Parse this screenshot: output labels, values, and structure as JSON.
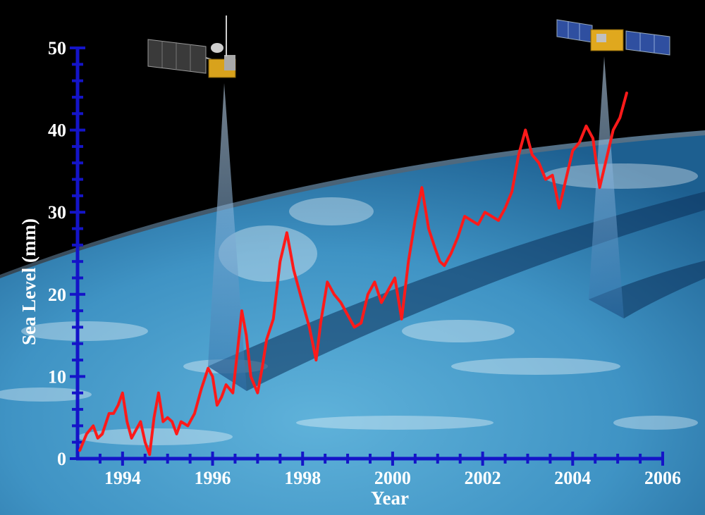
{
  "colors": {
    "space": "#000000",
    "ocean_light": "#4fa3cf",
    "ocean_dark": "#1f6f9e",
    "axis": "#1414c8",
    "series": "#ff1a1a",
    "ground_track": "#0b2f5a"
  },
  "icons": [
    "satellite-topex-icon",
    "satellite-jason-icon"
  ],
  "chart_data": {
    "type": "line",
    "title": "",
    "xlabel": "Year",
    "ylabel": "Sea Level (mm)",
    "xlim": [
      1993.0,
      2006.0
    ],
    "ylim": [
      0,
      50
    ],
    "x_ticks": [
      "1994",
      "1996",
      "1998",
      "2000",
      "2002",
      "2004",
      "2006"
    ],
    "y_ticks": [
      "0",
      "10",
      "20",
      "30",
      "40",
      "50"
    ],
    "grid": false,
    "legend": "none",
    "series": [
      {
        "color": "#ff1a1a",
        "x": [
          1993.05,
          1993.2,
          1993.35,
          1993.45,
          1993.55,
          1993.7,
          1993.8,
          1993.9,
          1994.0,
          1994.1,
          1994.2,
          1994.3,
          1994.4,
          1994.5,
          1994.6,
          1994.7,
          1994.8,
          1994.9,
          1995.0,
          1995.1,
          1995.2,
          1995.3,
          1995.45,
          1995.6,
          1995.75,
          1995.9,
          1996.0,
          1996.1,
          1996.2,
          1996.3,
          1996.45,
          1996.55,
          1996.65,
          1996.75,
          1996.85,
          1997.0,
          1997.1,
          1997.2,
          1997.35,
          1997.5,
          1997.65,
          1997.8,
          1997.9,
          1998.0,
          1998.15,
          1998.3,
          1998.4,
          1998.55,
          1998.7,
          1998.85,
          1999.0,
          1999.15,
          1999.3,
          1999.45,
          1999.6,
          1999.75,
          1999.9,
          2000.05,
          2000.2,
          2000.35,
          2000.5,
          2000.65,
          2000.8,
          2000.95,
          2001.05,
          2001.15,
          2001.3,
          2001.45,
          2001.6,
          2001.75,
          2001.9,
          2002.05,
          2002.2,
          2002.35,
          2002.5,
          2002.65,
          2002.8,
          2002.95,
          2003.1,
          2003.25,
          2003.4,
          2003.55,
          2003.7,
          2003.85,
          2004.0,
          2004.15,
          2004.3,
          2004.45,
          2004.6,
          2004.75,
          2004.9,
          2005.05,
          2005.2
        ],
        "y": [
          1.0,
          3.0,
          4.0,
          2.5,
          3.0,
          5.5,
          5.5,
          6.5,
          8.0,
          4.5,
          2.5,
          3.5,
          4.5,
          2.0,
          0.5,
          5.0,
          8.0,
          4.5,
          5.0,
          4.5,
          3.0,
          4.5,
          4.0,
          5.5,
          8.5,
          11.0,
          10.0,
          6.5,
          7.5,
          9.0,
          8.0,
          13.0,
          18.0,
          15.0,
          10.0,
          8.0,
          11.0,
          14.5,
          17.0,
          24.0,
          27.5,
          23.0,
          21.0,
          19.0,
          16.0,
          12.0,
          16.5,
          21.5,
          20.0,
          19.0,
          17.5,
          16.0,
          16.5,
          20.0,
          21.5,
          19.0,
          20.5,
          22.0,
          17.0,
          24.0,
          29.0,
          33.0,
          28.0,
          25.5,
          24.0,
          23.5,
          25.0,
          27.0,
          29.5,
          29.0,
          28.5,
          30.0,
          29.5,
          29.0,
          30.5,
          32.5,
          37.0,
          40.0,
          37.0,
          36.0,
          34.0,
          34.5,
          30.5,
          34.0,
          37.5,
          38.5,
          40.5,
          39.0,
          33.0,
          36.5,
          40.0,
          41.5,
          44.5
        ]
      }
    ]
  }
}
